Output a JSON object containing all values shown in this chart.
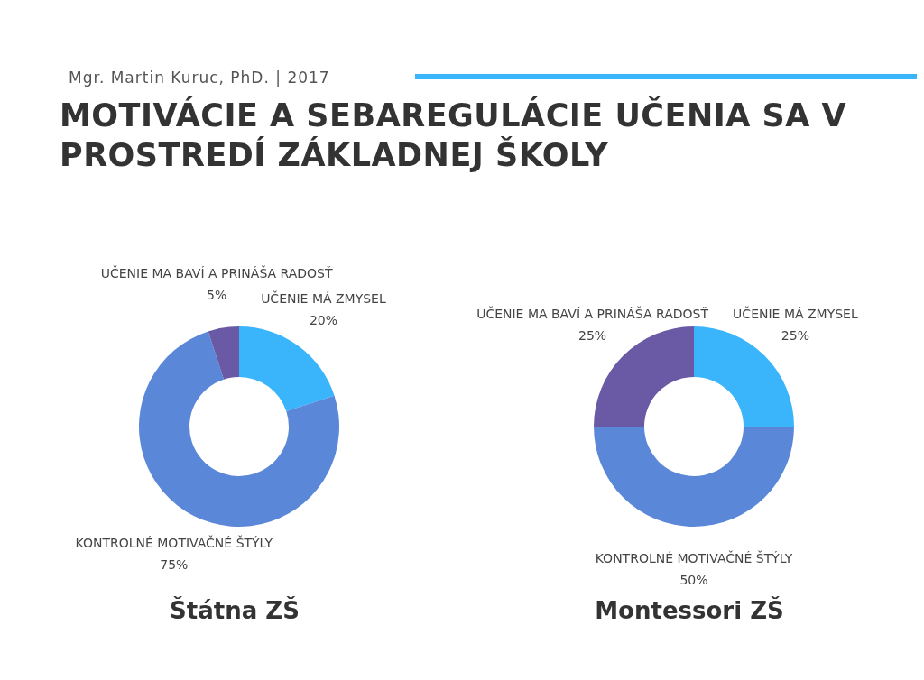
{
  "chart_data": [
    {
      "type": "other",
      "title": "MOTIVÁCIE A SEBAREGULÁCIE UČENIA SA V PROSTREDÍ ZÁKLADNEJ ŠKOLY",
      "annotations": [
        "Mgr. Martin Kuruc, PhD. | 2017"
      ]
    },
    {
      "type": "donut",
      "title": "Štátna ZŠ",
      "categories": [
        "UČENIE MÁ ZMYSEL",
        "KONTROLNÉ MOTIVAČNÉ ŠTÝLY",
        "UČENIE MA BAVÍ A PRINÁŠA RADOSŤ"
      ],
      "values": [
        20,
        75,
        5
      ],
      "colors": [
        "#3ab4fb",
        "#5b87d9",
        "#6a5aa5"
      ],
      "value_labels": [
        "20%",
        "75%",
        "5%"
      ]
    },
    {
      "type": "donut",
      "title": "Montessori ZŠ",
      "categories": [
        "UČENIE MÁ ZMYSEL",
        "KONTROLNÉ MOTIVAČNÉ ŠTÝLY",
        "UČENIE MA BAVÍ A PRINÁŠA RADOSŤ"
      ],
      "values": [
        25,
        50,
        25
      ],
      "colors": [
        "#3ab4fb",
        "#5b87d9",
        "#6a5aa5"
      ],
      "value_labels": [
        "25%",
        "50%",
        "25%"
      ]
    }
  ]
}
